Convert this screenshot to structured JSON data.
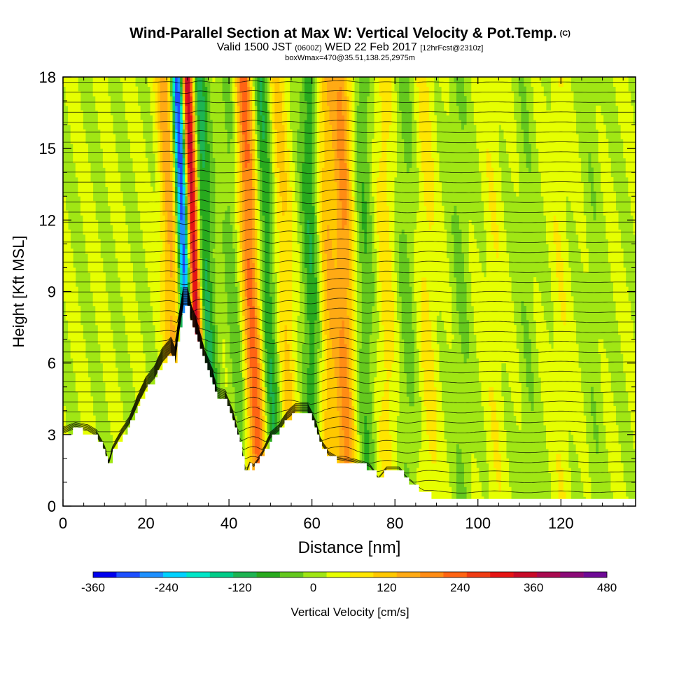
{
  "title": {
    "main": "Wind-Parallel Section at Max W: Vertical Velocity & Pot.Temp.",
    "copyright": "(C)",
    "valid_prefix": "Valid 1500 JST",
    "valid_z": "(0600Z)",
    "valid_date": "WED 22 Feb 2017",
    "forecast": "[12hrFcst@2310z]",
    "box": "boxWmax=470@35.51,138.25,2975m"
  },
  "chart_data": {
    "type": "heatmap",
    "xlabel": "Distance [nm]",
    "ylabel": "Height [Kft MSL]",
    "xlim": [
      0,
      138
    ],
    "ylim": [
      0,
      18
    ],
    "xticks": [
      0,
      20,
      40,
      60,
      80,
      100,
      120
    ],
    "yticks": [
      0,
      3,
      6,
      9,
      12,
      15,
      18
    ],
    "terrain_kft": [
      [
        0,
        3.0
      ],
      [
        3,
        3.2
      ],
      [
        6,
        3.1
      ],
      [
        8,
        2.9
      ],
      [
        10,
        2.3
      ],
      [
        11,
        1.7
      ],
      [
        12,
        2.3
      ],
      [
        14,
        2.9
      ],
      [
        16,
        3.4
      ],
      [
        18,
        4.2
      ],
      [
        20,
        4.9
      ],
      [
        22,
        5.3
      ],
      [
        24,
        6.0
      ],
      [
        26,
        6.4
      ],
      [
        27,
        6.0
      ],
      [
        28,
        7.3
      ],
      [
        29,
        8.4
      ],
      [
        30,
        8.4
      ],
      [
        31,
        7.6
      ],
      [
        32,
        7.2
      ],
      [
        34,
        6.0
      ],
      [
        36,
        5.2
      ],
      [
        37,
        4.5
      ],
      [
        39,
        4.4
      ],
      [
        41,
        3.6
      ],
      [
        43,
        2.3
      ],
      [
        44,
        1.3
      ],
      [
        45,
        1.7
      ],
      [
        46,
        1.6
      ],
      [
        48,
        2.1
      ],
      [
        50,
        2.8
      ],
      [
        52,
        3.1
      ],
      [
        54,
        3.6
      ],
      [
        56,
        3.9
      ],
      [
        59,
        3.9
      ],
      [
        61,
        3.2
      ],
      [
        62,
        2.6
      ],
      [
        64,
        2.1
      ],
      [
        66,
        1.9
      ],
      [
        70,
        1.8
      ],
      [
        74,
        1.6
      ],
      [
        76,
        1.1
      ],
      [
        78,
        1.5
      ],
      [
        81,
        1.5
      ],
      [
        83,
        1.1
      ],
      [
        86,
        0.7
      ],
      [
        88,
        0.5
      ],
      [
        90,
        0.3
      ],
      [
        138,
        0.3
      ]
    ],
    "colorbar": {
      "label": "Vertical Velocity [cm/s]",
      "ticks": [
        "-360",
        "-240",
        "-120",
        "0",
        "120",
        "240",
        "360",
        "480"
      ],
      "colors": [
        "#0000ee",
        "#1e50ff",
        "#1e90ff",
        "#00d2ff",
        "#00e6c8",
        "#00cc88",
        "#1eb452",
        "#28aa1e",
        "#64c81e",
        "#a0e614",
        "#e6ff00",
        "#ffe600",
        "#ffc800",
        "#ffaa14",
        "#ff8c14",
        "#ff6414",
        "#f03c14",
        "#e61414",
        "#c80a28",
        "#aa0a50",
        "#8c0a78",
        "#6e0a96"
      ]
    },
    "velocity_bands": [
      {
        "x": 30,
        "w": -380
      },
      {
        "x": 32.5,
        "w": 400
      },
      {
        "x": 27,
        "w": 140
      },
      {
        "x": 35,
        "w": -140
      },
      {
        "x": 42,
        "w": -60
      },
      {
        "x": 46,
        "w": 220
      },
      {
        "x": 50,
        "w": -120
      },
      {
        "x": 54,
        "w": 90
      },
      {
        "x": 60,
        "w": -110
      },
      {
        "x": 64,
        "w": 110
      },
      {
        "x": 68,
        "w": 160
      },
      {
        "x": 73,
        "w": -70
      },
      {
        "x": 78,
        "w": 60
      },
      {
        "x": 83,
        "w": -50
      },
      {
        "x": 88,
        "w": 50
      },
      {
        "x": 96,
        "w": -40
      },
      {
        "x": 104,
        "w": 30
      },
      {
        "x": 112,
        "w": -30
      },
      {
        "x": 120,
        "w": 30
      },
      {
        "x": 128,
        "w": -25
      }
    ],
    "isentropes_count": 42
  }
}
